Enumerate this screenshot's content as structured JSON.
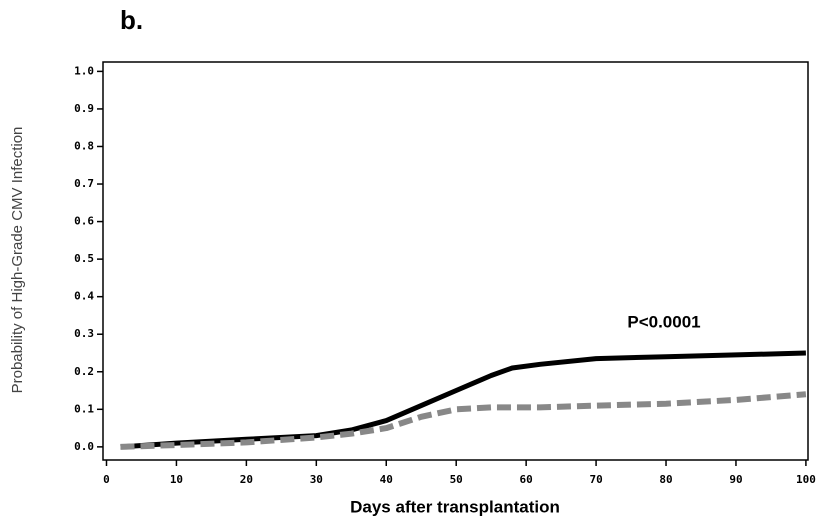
{
  "chart_data": {
    "type": "line",
    "panel_label": "b.",
    "xlabel": "Days after transplantation",
    "ylabel": "Probability of High-Grade CMV Infection",
    "annotation": "P<0.0001",
    "x": [
      2,
      10,
      20,
      30,
      35,
      40,
      45,
      50,
      55,
      58,
      62,
      70,
      80,
      90,
      100
    ],
    "series": [
      {
        "color": "#000000",
        "dashed": false,
        "values": [
          0,
          0.01,
          0.02,
          0.03,
          0.045,
          0.07,
          0.11,
          0.15,
          0.19,
          0.21,
          0.22,
          0.235,
          0.24,
          0.245,
          0.25
        ]
      },
      {
        "color": "#888888",
        "dashed": true,
        "values": [
          0,
          0.005,
          0.012,
          0.025,
          0.035,
          0.05,
          0.08,
          0.1,
          0.105,
          0.105,
          0.105,
          0.11,
          0.115,
          0.125,
          0.14
        ]
      }
    ],
    "xlim": [
      -0.5,
      100.3
    ],
    "xticks": [
      0,
      10,
      20,
      30,
      40,
      50,
      60,
      70,
      80,
      90,
      100
    ],
    "ylim": [
      -0.035,
      1.025
    ],
    "yticks": [
      {
        "value": 0,
        "label": "0.0"
      },
      0.1,
      0.2,
      0.3,
      0.4,
      0.5,
      0.6,
      0.7,
      0.8,
      0.9,
      {
        "value": 1,
        "label": "1.0"
      }
    ]
  }
}
